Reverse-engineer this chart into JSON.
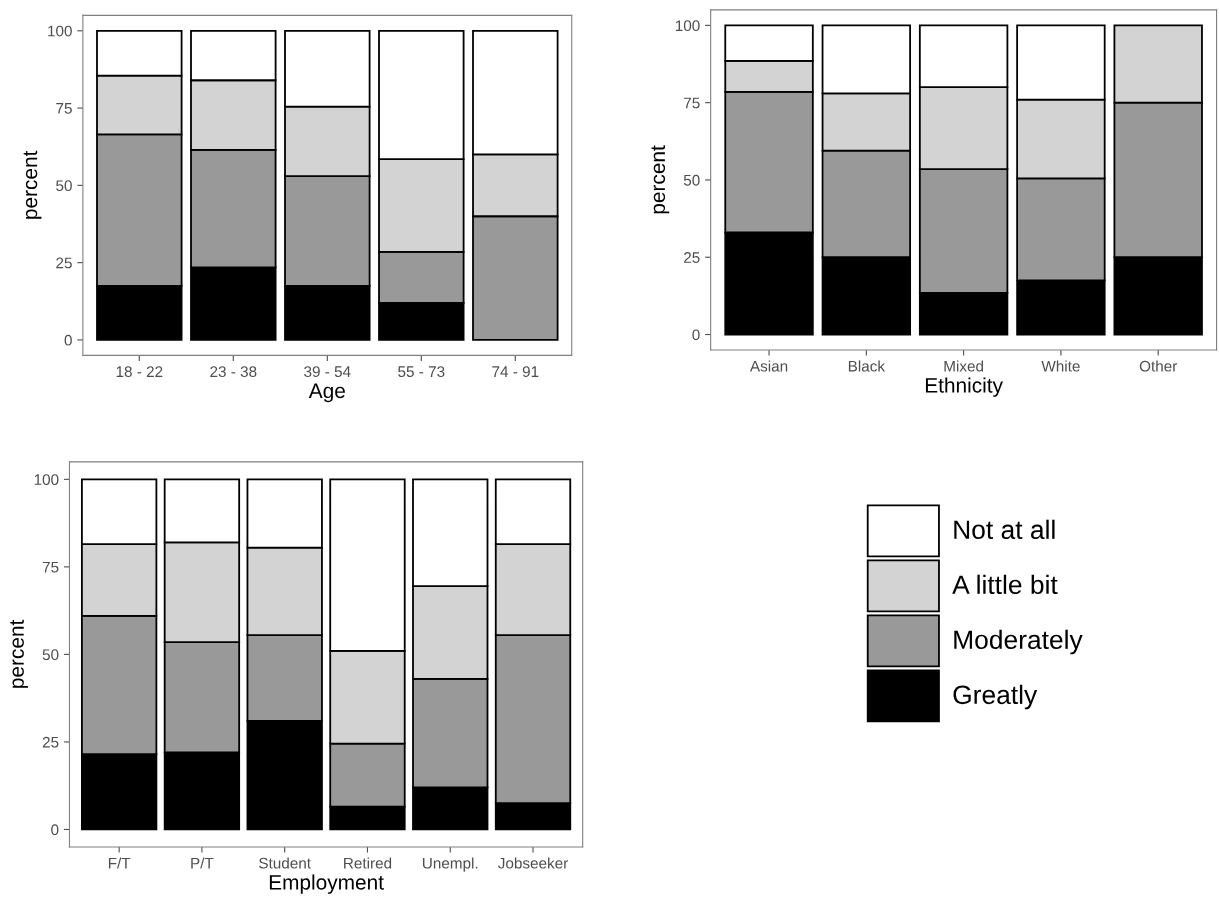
{
  "chart_data": [
    {
      "type": "bar",
      "stacked": true,
      "xlabel": "Age",
      "ylabel": "percent",
      "categories": [
        "18 - 22",
        "23 - 38",
        "39 - 54",
        "55 - 73",
        "74 - 91"
      ],
      "ylim": [
        -5,
        105
      ],
      "yticks": [
        0,
        25,
        50,
        75,
        100
      ],
      "series": [
        {
          "color": "#000000",
          "values": [
            17.5,
            23.5,
            17.5,
            12,
            null
          ]
        },
        {
          "color": "#999999",
          "values": [
            49,
            38,
            35.5,
            16.5,
            40
          ]
        },
        {
          "color": "#d3d3d3",
          "values": [
            19,
            22.5,
            22.5,
            30,
            20
          ]
        },
        {
          "color": "#ffffff",
          "values": [
            14.5,
            16,
            24.5,
            41.5,
            40
          ]
        }
      ]
    },
    {
      "type": "bar",
      "stacked": true,
      "xlabel": "Ethnicity",
      "ylabel": "percent",
      "categories": [
        "Asian",
        "Black",
        "Mixed",
        "White",
        "Other"
      ],
      "ylim": [
        -5,
        105
      ],
      "yticks": [
        0,
        25,
        50,
        75,
        100
      ],
      "series": [
        {
          "color": "#000000",
          "values": [
            33,
            25,
            13.5,
            17.5,
            25
          ]
        },
        {
          "color": "#999999",
          "values": [
            45.5,
            34.5,
            40,
            33,
            50
          ]
        },
        {
          "color": "#d3d3d3",
          "values": [
            10,
            18.5,
            26.5,
            25.5,
            25
          ]
        },
        {
          "color": "#ffffff",
          "values": [
            11.5,
            22,
            20,
            24,
            null
          ]
        }
      ]
    },
    {
      "type": "bar",
      "stacked": true,
      "xlabel": "Employment",
      "ylabel": "percent",
      "categories": [
        "F/T",
        "P/T",
        "Student",
        "Retired",
        "Unempl.",
        "Jobseeker"
      ],
      "ylim": [
        -5,
        105
      ],
      "yticks": [
        0,
        25,
        50,
        75,
        100
      ],
      "legend": "right",
      "series": [
        {
          "name": "Greatly",
          "color": "#000000",
          "values": [
            21.5,
            22,
            31,
            6.5,
            12,
            7.5
          ]
        },
        {
          "name": "Moderately",
          "color": "#999999",
          "values": [
            39.5,
            31.5,
            24.5,
            18,
            31,
            48
          ]
        },
        {
          "name": "A little bit",
          "color": "#d3d3d3",
          "values": [
            20.5,
            28.5,
            25,
            26.5,
            26.5,
            26
          ]
        },
        {
          "name": "Not at all",
          "color": "#ffffff",
          "values": [
            18.5,
            18,
            19.5,
            49,
            30.5,
            18.5
          ]
        }
      ]
    }
  ]
}
